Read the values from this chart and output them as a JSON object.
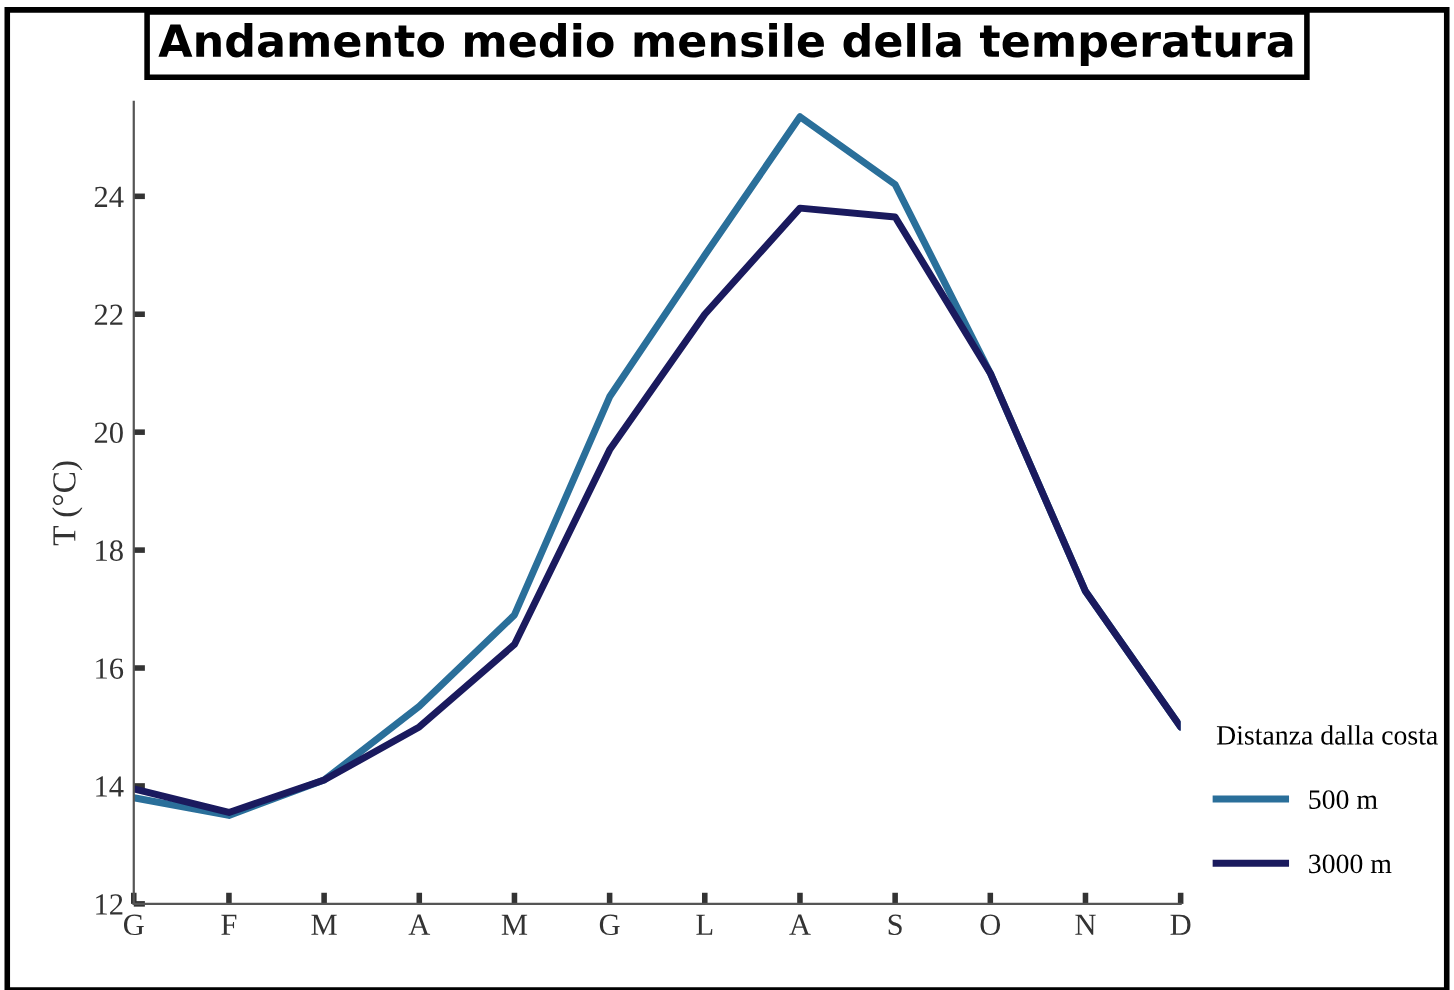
{
  "chart_data": {
    "type": "line",
    "title": "Andamento medio mensile della temperatura",
    "ylabel": "T (°C)",
    "legend_title": "Distanza dalla costa",
    "legend": "right",
    "grid": false,
    "marker": "none",
    "line_style": "solid",
    "categories": [
      "G",
      "F",
      "M",
      "A",
      "M",
      "G",
      "L",
      "A",
      "S",
      "O",
      "N",
      "D"
    ],
    "ylim": [
      12,
      25.6
    ],
    "yticks": [
      12,
      14,
      16,
      18,
      20,
      22,
      24
    ],
    "series": [
      {
        "name": "500 m",
        "color": "#2a6f9a",
        "values": [
          13.8,
          13.5,
          14.1,
          15.35,
          16.9,
          20.6,
          23.0,
          25.35,
          24.2,
          21.0,
          17.3,
          15.0
        ]
      },
      {
        "name": "3000 m",
        "color": "#1a1a5e",
        "values": [
          13.95,
          13.55,
          14.1,
          15.0,
          16.4,
          19.7,
          22.0,
          23.8,
          23.65,
          21.0,
          17.3,
          15.0
        ]
      }
    ]
  }
}
